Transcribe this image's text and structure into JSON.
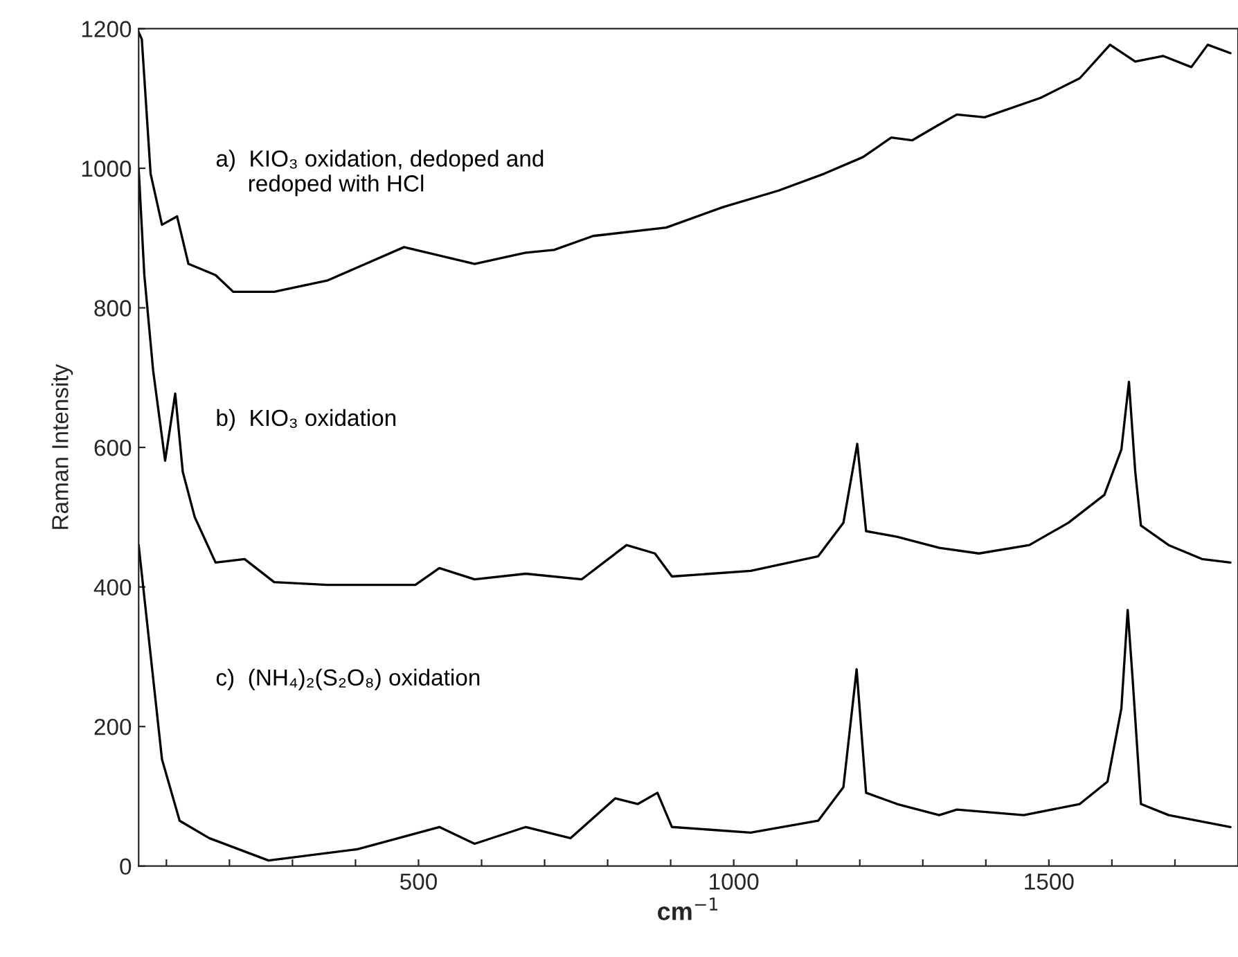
{
  "chart_data": {
    "type": "line",
    "xlabel": "cm$^{−1}$",
    "ylabel": "Raman Intensity",
    "xlim": [
      56,
      1800
    ],
    "ylim": [
      0,
      1200
    ],
    "xticks": [
      {
        "value": 100,
        "label": null
      },
      {
        "value": 200,
        "label": null
      },
      {
        "value": 300,
        "label": null
      },
      {
        "value": 400,
        "label": null
      },
      500,
      {
        "value": 600,
        "label": null
      },
      {
        "value": 700,
        "label": null
      },
      {
        "value": 800,
        "label": null
      },
      {
        "value": 900,
        "label": null
      },
      1000,
      {
        "value": 1100,
        "label": null
      },
      {
        "value": 1200,
        "label": null
      },
      {
        "value": 1300,
        "label": null
      },
      {
        "value": 1400,
        "label": null
      },
      1500,
      {
        "value": 1600,
        "label": null
      },
      {
        "value": 1700,
        "label": null
      }
    ],
    "yticks": [
      0,
      200,
      400,
      600,
      800,
      1000,
      1200
    ],
    "grid": false,
    "legend": false,
    "marker": "none",
    "line_style": "solid",
    "series": [
      {
        "name": "a)  KIO₃ oxidation, dedoped and\n     redoped with HCl",
        "color": "#000000",
        "x": [
          56,
          61,
          75,
          93,
          117,
          135,
          178,
          206,
          271,
          355,
          477,
          589,
          670,
          715,
          777,
          893,
          982,
          1071,
          1143,
          1205,
          1250,
          1283,
          1321,
          1354,
          1398,
          1487,
          1549,
          1597,
          1637,
          1681,
          1726,
          1752,
          1788
        ],
        "values": [
          1195,
          1185,
          992,
          919,
          931,
          863,
          847,
          823,
          823,
          839,
          887,
          863,
          879,
          883,
          903,
          915,
          944,
          968,
          992,
          1016,
          1044,
          1040,
          1060,
          1077,
          1073,
          1101,
          1129,
          1177,
          1153,
          1161,
          1145,
          1177,
          1165
        ]
      },
      {
        "name": "b)  KIO₃ oxidation",
        "color": "#000000",
        "x": [
          56,
          65,
          79,
          98,
          114,
          126,
          145,
          178,
          224,
          271,
          355,
          495,
          533,
          589,
          670,
          759,
          830,
          875,
          902,
          1027,
          1134,
          1174,
          1196,
          1210,
          1259,
          1326,
          1389,
          1469,
          1531,
          1588,
          1615,
          1627,
          1637,
          1646,
          1690,
          1743,
          1788
        ],
        "values": [
          1000,
          847,
          710,
          581,
          677,
          565,
          500,
          435,
          440,
          407,
          403,
          403,
          427,
          411,
          419,
          411,
          460,
          448,
          415,
          423,
          444,
          492,
          605,
          480,
          472,
          456,
          448,
          460,
          492,
          532,
          597,
          694,
          565,
          488,
          460,
          440,
          435
        ]
      },
      {
        "name": "c)  (NH₄)₂(S₂O₈) oxidation",
        "color": "#000000",
        "x": [
          56,
          93,
          121,
          168,
          262,
          402,
          533,
          589,
          670,
          741,
          812,
          848,
          879,
          902,
          1027,
          1134,
          1174,
          1195,
          1210,
          1259,
          1326,
          1354,
          1460,
          1549,
          1593,
          1615,
          1625,
          1633,
          1646,
          1690,
          1788
        ],
        "values": [
          460,
          153,
          65,
          40,
          8,
          24,
          56,
          32,
          56,
          40,
          97,
          89,
          105,
          56,
          48,
          65,
          113,
          282,
          105,
          89,
          73,
          81,
          73,
          89,
          121,
          226,
          367,
          266,
          89,
          73,
          56
        ]
      }
    ]
  }
}
